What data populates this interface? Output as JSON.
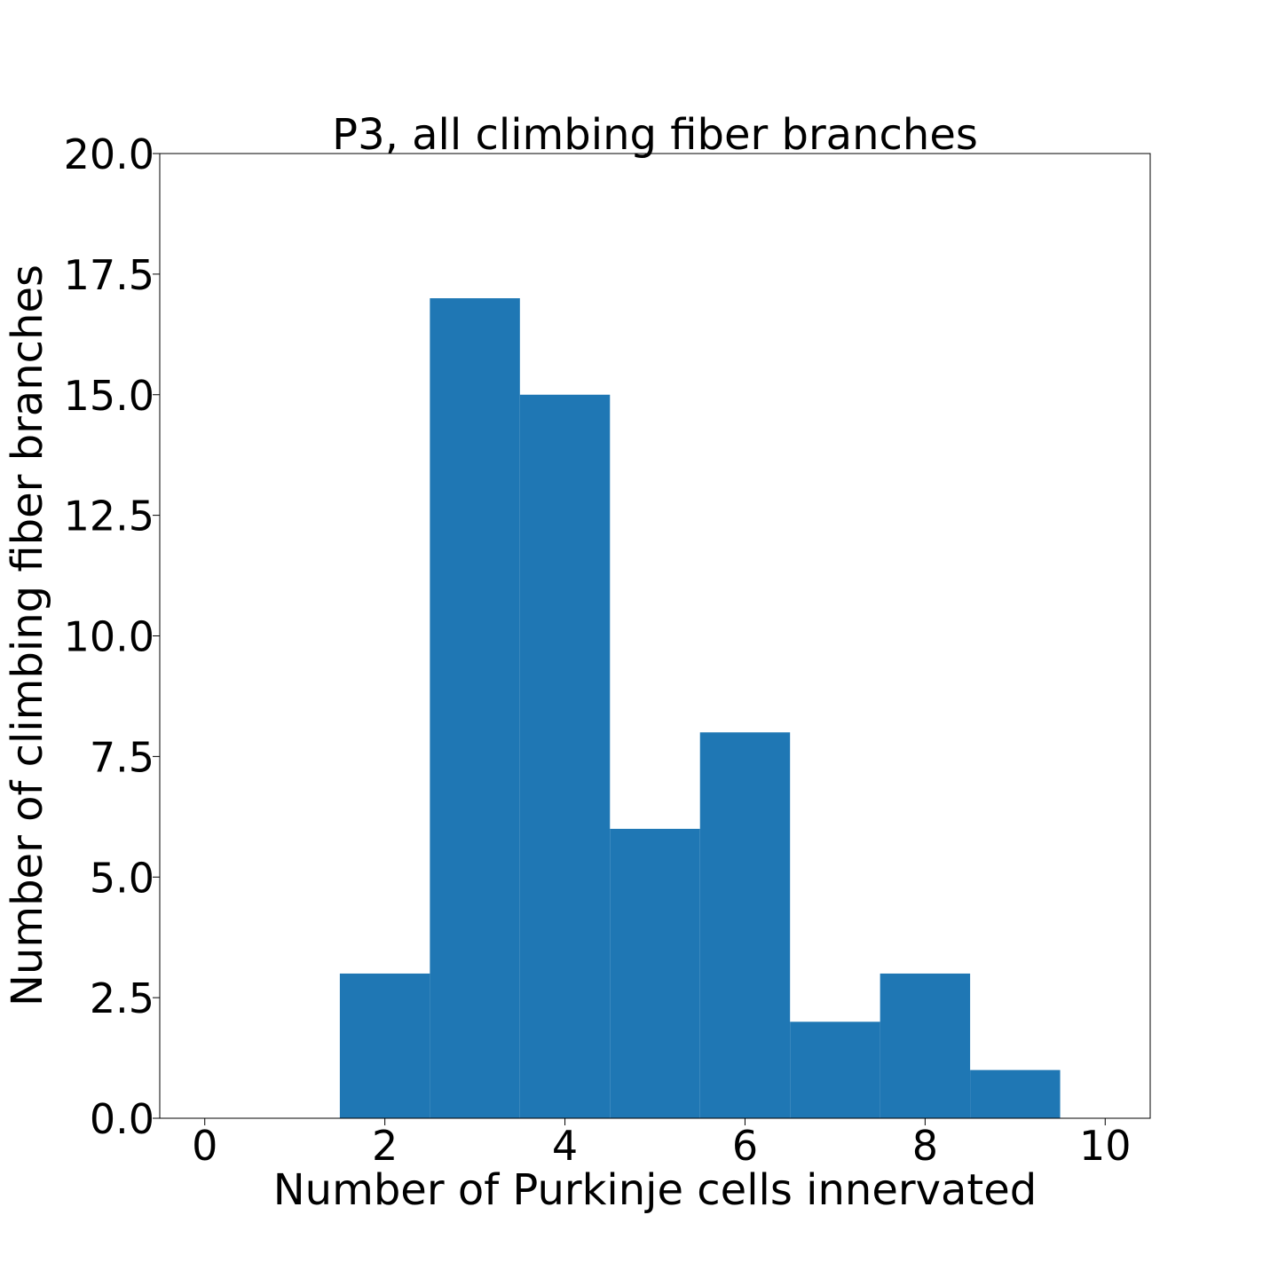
{
  "chart_data": {
    "type": "bar",
    "title": "P3, all climbing fiber branches",
    "xlabel": "Number of Purkinje cells innervated",
    "ylabel": "Number of climbing fiber branches",
    "xlim": [
      -0.5,
      10.5
    ],
    "ylim": [
      0,
      20
    ],
    "xticks": [
      0,
      2,
      4,
      6,
      8,
      10
    ],
    "xtick_labels": [
      "0",
      "2",
      "4",
      "6",
      "8",
      "10"
    ],
    "yticks": [
      0,
      2.5,
      5,
      7.5,
      10,
      12.5,
      15,
      17.5,
      20
    ],
    "ytick_labels": [
      "0.0",
      "2.5",
      "5.0",
      "7.5",
      "10.0",
      "12.5",
      "15.0",
      "17.5",
      "20.0"
    ],
    "bar_width": 1,
    "x": [
      0,
      1,
      2,
      3,
      4,
      5,
      6,
      7,
      8,
      9
    ],
    "values": [
      0,
      0,
      3,
      17,
      15,
      6,
      8,
      2,
      3,
      1
    ],
    "grid": false,
    "bar_color": "#1f77b4"
  }
}
